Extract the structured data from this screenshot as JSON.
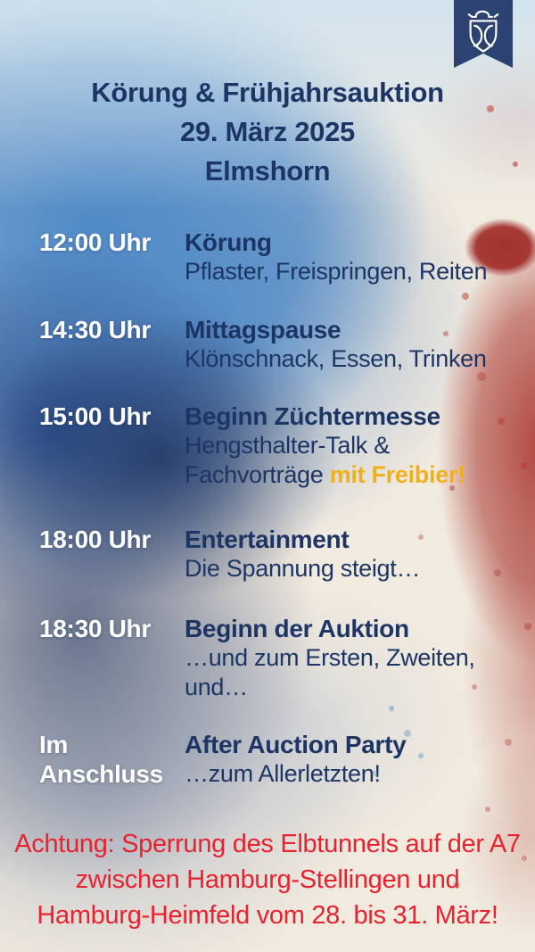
{
  "poster": {
    "badge": {
      "icon": "holsteiner-shield-icon"
    },
    "header": {
      "lines": [
        "Körung & Frühjahrsauktion",
        "29. März 2025",
        "Elmshorn"
      ]
    },
    "schedule": {
      "rows": [
        {
          "time": "12:00 Uhr",
          "title": "Körung",
          "details": [
            [
              {
                "t": "Pflaster, Freispringen, Reiten"
              }
            ]
          ]
        },
        {
          "time": "14:30 Uhr",
          "title": "Mittagspause",
          "details": [
            [
              {
                "t": "Klönschnack, Essen, Trinken"
              }
            ]
          ]
        },
        {
          "time": "15:00 Uhr",
          "title": "Beginn Züchtermesse",
          "details": [
            [
              {
                "t": "Hengsthalter-Talk &"
              }
            ],
            [
              {
                "t": "Fachvorträge "
              },
              {
                "t": "mit Freibier!",
                "hl": true
              }
            ]
          ]
        },
        {
          "time": "18:00 Uhr",
          "title": "Entertainment",
          "details": [
            [
              {
                "t": "Die Spannung steigt…"
              }
            ]
          ]
        },
        {
          "time": "18:30 Uhr",
          "title": "Beginn der Auktion",
          "details": [
            [
              {
                "t": "…und zum Ersten, Zweiten,"
              }
            ],
            [
              {
                "t": "und…"
              }
            ]
          ]
        },
        {
          "time": "Im\nAnschluss",
          "title": "After Auction Party",
          "details": [
            [
              {
                "t": "…zum Allerletzten!"
              }
            ]
          ]
        }
      ]
    },
    "notice": {
      "lines": [
        "Achtung: Sperrung des Elbtunnels auf der A7",
        "zwischen Hamburg-Stellingen und",
        "Hamburg-Heimfeld vom 28. bis 31. März!"
      ]
    }
  },
  "colors": {
    "navy": "#1c3565",
    "ribbon_navy": "#2c4270",
    "time_white": "#ffffff",
    "highlight_yellow": "#f0b01e",
    "notice_red": "#e8222f",
    "paper_cream": "#f1eadf",
    "paint_blue": "#4986c6",
    "paint_red": "#a7322b"
  }
}
